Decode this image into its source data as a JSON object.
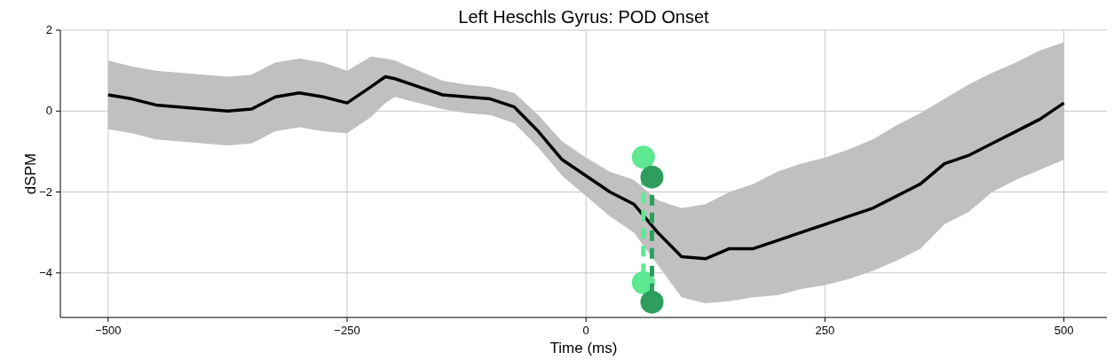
{
  "chart_data": {
    "type": "line",
    "title": "Left Heschls Gyrus: POD Onset",
    "xlabel": "Time (ms)",
    "ylabel": "dSPM",
    "xlim": [
      -550,
      545
    ],
    "ylim": [
      -5.1,
      2
    ],
    "xticks": [
      {
        "value": -500,
        "label": "−500"
      },
      {
        "value": -250,
        "label": "−250"
      },
      0,
      250,
      500
    ],
    "yticks": [
      {
        "value": -4,
        "label": "−4"
      },
      {
        "value": -2,
        "label": "−2"
      },
      0,
      2
    ],
    "grid": true,
    "series": [
      {
        "color": "#000000",
        "x": [
          -500,
          -475,
          -450,
          -425,
          -400,
          -375,
          -350,
          -325,
          -300,
          -275,
          -250,
          -225,
          -210,
          -200,
          -175,
          -150,
          -125,
          -100,
          -75,
          -50,
          -25,
          0,
          25,
          50,
          75,
          100,
          125,
          150,
          175,
          200,
          225,
          250,
          275,
          300,
          325,
          350,
          375,
          400,
          425,
          450,
          475,
          500
        ],
        "values": [
          0.4,
          0.3,
          0.15,
          0.1,
          0.05,
          0.0,
          0.05,
          0.35,
          0.45,
          0.35,
          0.2,
          0.6,
          0.85,
          0.8,
          0.6,
          0.4,
          0.35,
          0.3,
          0.1,
          -0.5,
          -1.2,
          -1.6,
          -2.0,
          -2.3,
          -3.0,
          -3.6,
          -3.65,
          -3.4,
          -3.4,
          -3.2,
          -3.0,
          -2.8,
          -2.6,
          -2.4,
          -2.1,
          -1.8,
          -1.3,
          -1.1,
          -0.8,
          -0.5,
          -0.2,
          0.2
        ],
        "upper": [
          1.25,
          1.1,
          1.0,
          0.95,
          0.9,
          0.85,
          0.9,
          1.2,
          1.3,
          1.2,
          1.0,
          1.35,
          1.3,
          1.25,
          1.0,
          0.75,
          0.65,
          0.6,
          0.45,
          -0.1,
          -0.75,
          -1.15,
          -1.5,
          -1.7,
          -2.2,
          -2.4,
          -2.3,
          -2.0,
          -1.8,
          -1.5,
          -1.3,
          -1.15,
          -0.95,
          -0.7,
          -0.35,
          -0.05,
          0.3,
          0.65,
          0.95,
          1.2,
          1.5,
          1.7
        ],
        "lower": [
          -0.45,
          -0.55,
          -0.7,
          -0.75,
          -0.8,
          -0.85,
          -0.8,
          -0.5,
          -0.4,
          -0.5,
          -0.55,
          -0.15,
          0.2,
          0.35,
          0.2,
          0.05,
          -0.05,
          -0.1,
          -0.3,
          -0.9,
          -1.6,
          -2.1,
          -2.6,
          -3.0,
          -3.8,
          -4.6,
          -4.75,
          -4.7,
          -4.6,
          -4.55,
          -4.4,
          -4.3,
          -4.15,
          -3.95,
          -3.7,
          -3.4,
          -2.8,
          -2.5,
          -2.0,
          -1.7,
          -1.45,
          -1.2
        ]
      },
      {
        "color": "#5ee892",
        "x": [
          60,
          60
        ],
        "values": [
          -1.14,
          -4.24
        ],
        "marker": "circle",
        "line_style": "dashed"
      },
      {
        "color": "#2e9e5e",
        "x": [
          69,
          69
        ],
        "values": [
          -1.63,
          -4.72
        ],
        "marker": "circle",
        "line_style": "dashed"
      }
    ]
  }
}
